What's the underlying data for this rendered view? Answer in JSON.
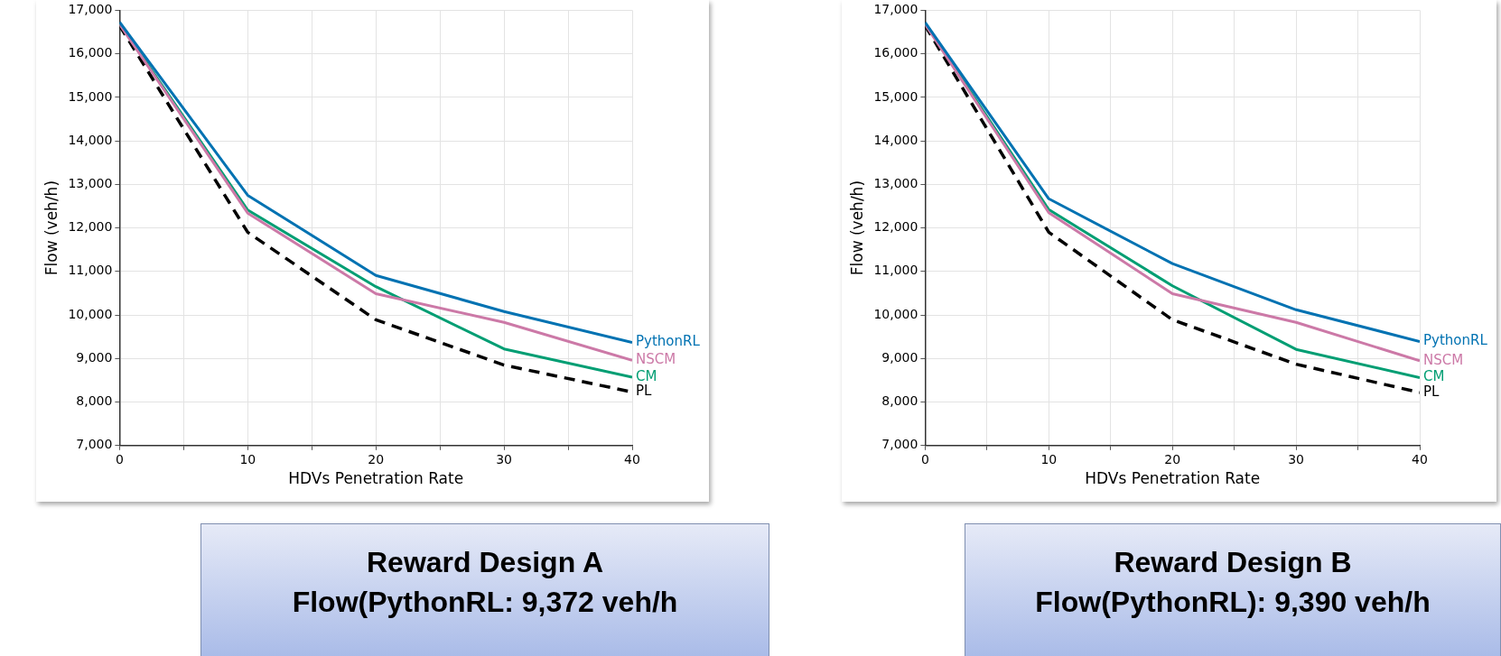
{
  "chart_data": [
    {
      "type": "line",
      "xlabel": "HDVs Penetration Rate",
      "ylabel": "Flow (veh/h)",
      "x": [
        0,
        10,
        20,
        30,
        40
      ],
      "xlim": [
        0,
        40
      ],
      "xticks": [
        0,
        {
          "value": 5,
          "label": null
        },
        10,
        {
          "value": 15,
          "label": null
        },
        20,
        {
          "value": 25,
          "label": null
        },
        30,
        {
          "value": 35,
          "label": null
        },
        40
      ],
      "ylim": [
        7000,
        17000
      ],
      "yticks": [
        {
          "value": 7000,
          "label": "7,000"
        },
        {
          "value": 8000,
          "label": "8,000"
        },
        {
          "value": 9000,
          "label": "9,000"
        },
        {
          "value": 10000,
          "label": "10,000"
        },
        {
          "value": 11000,
          "label": "11,000"
        },
        {
          "value": 12000,
          "label": "12,000"
        },
        {
          "value": 13000,
          "label": "13,000"
        },
        {
          "value": 14000,
          "label": "14,000"
        },
        {
          "value": 15000,
          "label": "15,000"
        },
        {
          "value": 16000,
          "label": "16,000"
        },
        {
          "value": 17000,
          "label": "17,000"
        }
      ],
      "grid": true,
      "legend": false,
      "marker": "none",
      "series": [
        {
          "name": "PythonRL",
          "color": "#0072b2",
          "line_style": "solid",
          "values": [
            16730,
            12750,
            10910,
            10080,
            9370
          ]
        },
        {
          "name": "NSCM",
          "color": "#cc79a7",
          "line_style": "solid",
          "values": [
            16680,
            12340,
            10490,
            9830,
            8960
          ]
        },
        {
          "name": "CM",
          "color": "#009e73",
          "line_style": "solid",
          "values": [
            16700,
            12410,
            10650,
            9220,
            8570
          ]
        },
        {
          "name": "PL",
          "color": "#000000",
          "line_style": "dashed",
          "values": [
            16650,
            11900,
            9890,
            8850,
            8230
          ]
        }
      ],
      "annotations": [
        "Reward Design A",
        "Flow(PythonRL: 9,372 veh/h"
      ]
    },
    {
      "type": "line",
      "xlabel": "HDVs Penetration Rate",
      "ylabel": "Flow (veh/h)",
      "x": [
        0,
        10,
        20,
        30,
        40
      ],
      "xlim": [
        0,
        40
      ],
      "xticks": [
        0,
        {
          "value": 5,
          "label": null
        },
        10,
        {
          "value": 15,
          "label": null
        },
        20,
        {
          "value": 25,
          "label": null
        },
        30,
        {
          "value": 35,
          "label": null
        },
        40
      ],
      "ylim": [
        7000,
        17000
      ],
      "yticks": [
        {
          "value": 7000,
          "label": "7,000"
        },
        {
          "value": 8000,
          "label": "8,000"
        },
        {
          "value": 9000,
          "label": "9,000"
        },
        {
          "value": 10000,
          "label": "10,000"
        },
        {
          "value": 11000,
          "label": "11,000"
        },
        {
          "value": 12000,
          "label": "12,000"
        },
        {
          "value": 13000,
          "label": "13,000"
        },
        {
          "value": 14000,
          "label": "14,000"
        },
        {
          "value": 15000,
          "label": "15,000"
        },
        {
          "value": 16000,
          "label": "16,000"
        },
        {
          "value": 17000,
          "label": "17,000"
        }
      ],
      "grid": true,
      "legend": false,
      "marker": "none",
      "series": [
        {
          "name": "PythonRL",
          "color": "#0072b2",
          "line_style": "solid",
          "values": [
            16720,
            12670,
            11180,
            10120,
            9390
          ]
        },
        {
          "name": "NSCM",
          "color": "#cc79a7",
          "line_style": "solid",
          "values": [
            16680,
            12350,
            10490,
            9830,
            8950
          ]
        },
        {
          "name": "CM",
          "color": "#009e73",
          "line_style": "solid",
          "values": [
            16700,
            12420,
            10670,
            9210,
            8560
          ]
        },
        {
          "name": "PL",
          "color": "#000000",
          "line_style": "dashed",
          "values": [
            16650,
            11900,
            9890,
            8870,
            8220
          ]
        }
      ],
      "annotations": [
        "Reward Design B",
        "Flow(PythonRL): 9,390 veh/h"
      ]
    }
  ]
}
